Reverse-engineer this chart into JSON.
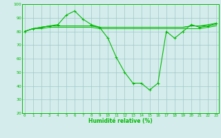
{
  "xlabel": "Humidité relative (%)",
  "x": [
    0,
    1,
    2,
    3,
    4,
    5,
    6,
    7,
    8,
    9,
    10,
    11,
    12,
    13,
    14,
    15,
    16,
    17,
    18,
    19,
    20,
    21,
    22,
    23
  ],
  "series1": [
    80,
    82,
    83,
    84,
    85,
    92,
    95,
    89,
    85,
    83,
    75,
    61,
    50,
    42,
    42,
    37,
    42,
    80,
    75,
    80,
    85,
    83,
    84,
    86
  ],
  "series2": [
    80,
    82,
    83,
    84,
    84,
    84,
    84,
    84,
    84,
    83,
    83,
    83,
    83,
    83,
    83,
    83,
    83,
    83,
    83,
    83,
    84,
    84,
    84,
    85
  ],
  "series3": [
    80,
    82,
    83,
    84,
    84,
    84,
    84,
    84,
    84,
    83,
    83,
    83,
    83,
    83,
    83,
    83,
    83,
    83,
    83,
    83,
    84,
    84,
    85,
    86
  ],
  "series4": [
    80,
    82,
    82,
    83,
    83,
    83,
    83,
    83,
    83,
    82,
    82,
    82,
    82,
    82,
    82,
    82,
    82,
    82,
    82,
    82,
    82,
    82,
    83,
    84
  ],
  "line_color": "#00bb00",
  "bg_color": "#d4ecec",
  "grid_color": "#a0c8c8",
  "ylim_min": 20,
  "ylim_max": 100,
  "yticks": [
    20,
    30,
    40,
    50,
    60,
    70,
    80,
    90,
    100
  ]
}
